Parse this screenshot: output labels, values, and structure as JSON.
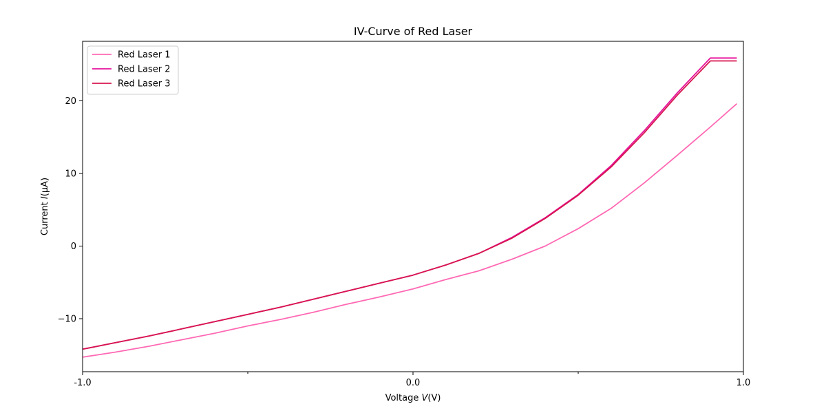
{
  "chart_data": {
    "type": "line",
    "title": "IV-Curve of Red Laser",
    "xlabel_prefix": "Voltage ",
    "xlabel_var": "V",
    "xlabel_suffix": "(V)",
    "ylabel_prefix": "Current ",
    "ylabel_var": "I",
    "ylabel_suffix": "(μA)",
    "xlim": [
      -1.0,
      1.0
    ],
    "ylim": [
      -17.3,
      28.2
    ],
    "x_ticks_labeled": [
      -1.0,
      0.0,
      1.0
    ],
    "x_tick_labels": [
      "-1.0",
      "0.0",
      "1.0"
    ],
    "x_ticks_minor": [
      -0.5,
      0.5
    ],
    "y_ticks": [
      -10,
      0,
      10,
      20
    ],
    "y_tick_labels": [
      "−10",
      "0",
      "10",
      "20"
    ],
    "grid": false,
    "legend_position": "top-left",
    "x": [
      -1.0,
      -0.9,
      -0.8,
      -0.7,
      -0.6,
      -0.5,
      -0.4,
      -0.3,
      -0.2,
      -0.1,
      0.0,
      0.1,
      0.2,
      0.3,
      0.4,
      0.5,
      0.6,
      0.7,
      0.8,
      0.9,
      0.98
    ],
    "series": [
      {
        "name": "Red Laser 1",
        "color": "#ff69b4",
        "values": [
          -15.3,
          -14.6,
          -13.8,
          -12.9,
          -12.0,
          -11.0,
          -10.1,
          -9.1,
          -8.0,
          -7.0,
          -5.9,
          -4.6,
          -3.4,
          -1.8,
          0.0,
          2.4,
          5.2,
          8.7,
          12.5,
          16.4,
          19.6
        ]
      },
      {
        "name": "Red Laser 2",
        "color": "#e6119b",
        "values": [
          -14.2,
          -13.3,
          -12.4,
          -11.4,
          -10.4,
          -9.4,
          -8.4,
          -7.3,
          -6.2,
          -5.1,
          -4.0,
          -2.6,
          -1.0,
          1.2,
          3.9,
          7.1,
          11.1,
          15.9,
          21.1,
          25.9,
          25.9
        ]
      },
      {
        "name": "Red Laser 3",
        "color": "#d7164f",
        "values": [
          -14.2,
          -13.3,
          -12.4,
          -11.4,
          -10.4,
          -9.4,
          -8.4,
          -7.3,
          -6.2,
          -5.1,
          -4.0,
          -2.6,
          -1.0,
          1.1,
          3.8,
          7.0,
          10.9,
          15.6,
          20.8,
          25.5,
          25.5
        ]
      }
    ]
  }
}
